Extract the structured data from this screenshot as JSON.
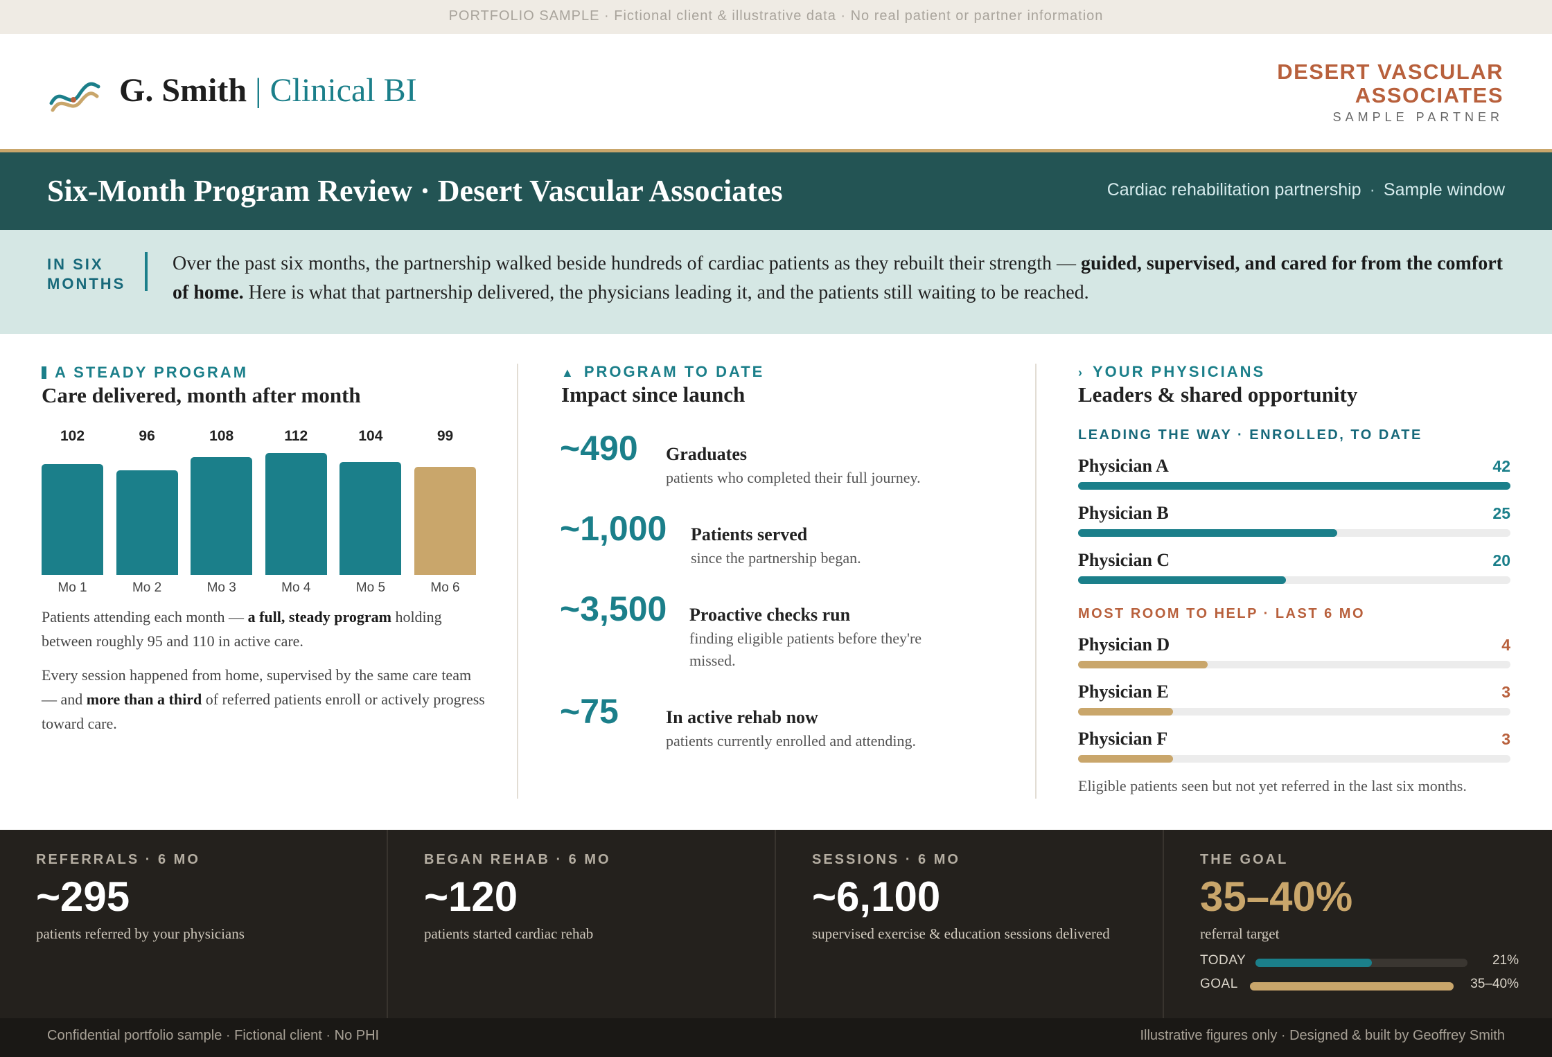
{
  "top_strip": "PORTFOLIO SAMPLE · Fictional client & illustrative data · No real patient or partner information",
  "brand": {
    "name": "G. Smith",
    "separator": "|",
    "product": "Clinical BI",
    "icon": "wave-chart-logo-icon"
  },
  "partner": {
    "name": "DESERT VASCULAR ASSOCIATES",
    "tag": "SAMPLE PARTNER"
  },
  "title_bar": {
    "title": "Six-Month Program Review · Desert Vascular Associates",
    "meta_left": "Cardiac rehabilitation partnership",
    "meta_sep": "·",
    "meta_right": "Sample window"
  },
  "intro": {
    "label": "IN SIX MONTHS",
    "text_start": "Over the past six months, the partnership walked beside hundreds of cardiac patients as they rebuilt their strength —",
    "text_bold": "guided, supervised, and cared for from the comfort of home.",
    "text_end": "Here is what that partnership delivered, the physicians leading it, and the patients still waiting to be reached."
  },
  "col1": {
    "eyebrow": "A STEADY PROGRAM",
    "heading": "Care delivered, month after month",
    "para1_start": "Patients attending each month —",
    "para1_bold": "a full, steady program",
    "para1_end": "holding between roughly 95 and 110 in active care.",
    "para2_start": "Every session happened from home, supervised by the same care team — and",
    "para2_bold": "more than a third",
    "para2_end": "of referred patients enroll or actively progress toward care."
  },
  "chart_data": {
    "type": "bar",
    "categories": [
      "Mo 1",
      "Mo 2",
      "Mo 3",
      "Mo 4",
      "Mo 5",
      "Mo 6"
    ],
    "values": [
      102,
      96,
      108,
      112,
      104,
      99
    ],
    "title": "",
    "xlabel": "",
    "ylabel": "",
    "colors": [
      "#1b7f8a",
      "#1b7f8a",
      "#1b7f8a",
      "#1b7f8a",
      "#1b7f8a",
      "#c9a66b"
    ]
  },
  "col2": {
    "eyebrow": "PROGRAM TO DATE",
    "heading": "Impact since launch",
    "stats": [
      {
        "value": "~490",
        "title": "Graduates",
        "desc": "patients who completed their full journey."
      },
      {
        "value": "~1,000",
        "title": "Patients served",
        "desc": "since the partnership began."
      },
      {
        "value": "~3,500",
        "title": "Proactive checks run",
        "desc": "finding eligible patients before they're missed."
      },
      {
        "value": "~75",
        "title": "In active rehab now",
        "desc": "patients currently enrolled and attending."
      }
    ]
  },
  "col3": {
    "eyebrow": "YOUR PHYSICIANS",
    "heading": "Leaders & shared opportunity",
    "leading_label": "LEADING THE WAY · ENROLLED, TO DATE",
    "room_label": "MOST ROOM TO HELP · LAST 6 MO",
    "leading": [
      {
        "name": "Physician A",
        "value": "42",
        "fraction": 1.0
      },
      {
        "name": "Physician B",
        "value": "25",
        "fraction": 0.6
      },
      {
        "name": "Physician C",
        "value": "20",
        "fraction": 0.48
      }
    ],
    "room": [
      {
        "name": "Physician D",
        "value": "4",
        "fraction": 0.3
      },
      {
        "name": "Physician E",
        "value": "3",
        "fraction": 0.22
      },
      {
        "name": "Physician F",
        "value": "3",
        "fraction": 0.22
      }
    ],
    "note": "Eligible patients seen but not yet referred in the last six months."
  },
  "footer_stats": [
    {
      "key": "REFERRALS · 6 MO",
      "value": "~295",
      "desc": "patients referred by your physicians"
    },
    {
      "key": "BEGAN REHAB · 6 MO",
      "value": "~120",
      "desc": "patients started cardiac rehab"
    },
    {
      "key": "SESSIONS · 6 MO",
      "value": "~6,100",
      "desc": "supervised exercise & education sessions delivered"
    },
    {
      "key": "THE GOAL",
      "value": "35–40%",
      "desc": "referral target"
    }
  ],
  "goal": {
    "today_label": "TODAY",
    "today_value": "21%",
    "today_fraction": 0.55,
    "goal_label": "GOAL",
    "goal_value": "35–40%",
    "goal_fraction": 1.0
  },
  "bottom": {
    "left": "Confidential portfolio sample · Fictional client · No PHI",
    "right": "Illustrative figures only · Designed & built by Geoffrey Smith"
  },
  "colors": {
    "teal": "#1b7f8a",
    "gold": "#c9a66b",
    "rust": "#b8603c",
    "dark": "#24211d"
  }
}
